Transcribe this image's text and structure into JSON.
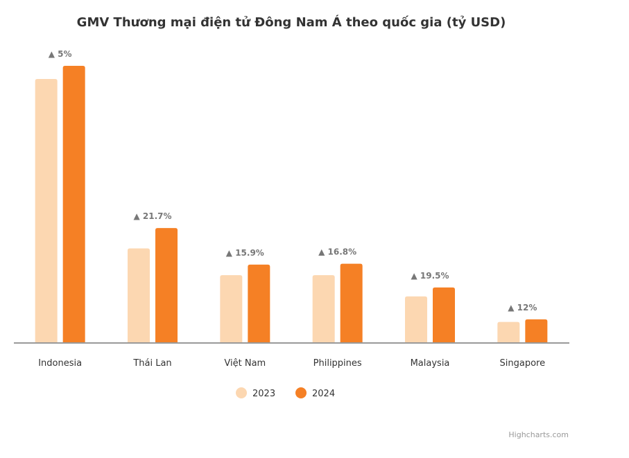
{
  "chart_data": {
    "type": "bar",
    "title": "GMV Thương mại điện tử Đông Nam Á theo quốc gia (tỷ USD)",
    "categories": [
      "Indonesia",
      "Thái Lan",
      "Việt Nam",
      "Philippines",
      "Malaysia",
      "Singapore"
    ],
    "series": [
      {
        "name": "2023",
        "color": "#fcd7b1",
        "values": [
          62,
          22.1,
          15.8,
          15.8,
          10.8,
          4.8
        ]
      },
      {
        "name": "2024",
        "color": "#f58025",
        "values": [
          65.1,
          26.9,
          18.3,
          18.5,
          12.9,
          5.4
        ]
      }
    ],
    "growth_labels": [
      "▲ 5%",
      "▲ 21.7%",
      "▲ 15.9%",
      "▲ 16.8%",
      "▲ 19.5%",
      "▲ 12%"
    ],
    "ylim": [
      0,
      65.1
    ],
    "grid": false,
    "legend_position": "bottom-center"
  },
  "credits": "Highcharts.com"
}
